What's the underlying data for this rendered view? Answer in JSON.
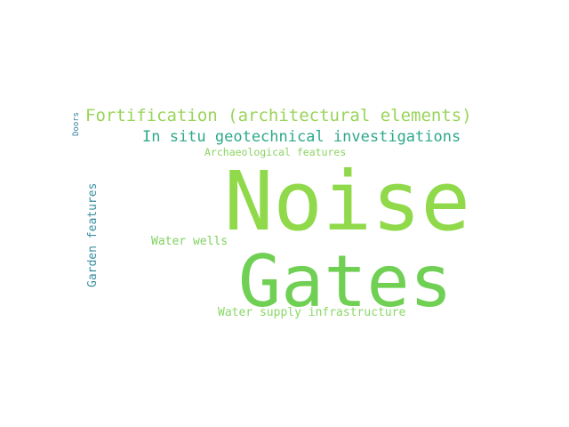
{
  "words": [
    {
      "id": "noise",
      "text": "Noise",
      "color": "#8fd94a"
    },
    {
      "id": "gates",
      "text": "Gates",
      "color": "#6fd054"
    },
    {
      "id": "fortification",
      "text": "Fortification (architectural elements)",
      "color": "#9ad45a"
    },
    {
      "id": "in-situ",
      "text": "In situ geotechnical investigations",
      "color": "#2ea88a"
    },
    {
      "id": "archaeological",
      "text": "Archaeological features",
      "color": "#8bd463"
    },
    {
      "id": "garden",
      "text": "Garden features",
      "color": "#3a8da0"
    },
    {
      "id": "water-wells",
      "text": "Water wells",
      "color": "#7fd15f"
    },
    {
      "id": "water-supply",
      "text": "Water supply infrastructure",
      "color": "#8ad867"
    },
    {
      "id": "doors",
      "text": "Doors",
      "color": "#357f9c"
    }
  ]
}
